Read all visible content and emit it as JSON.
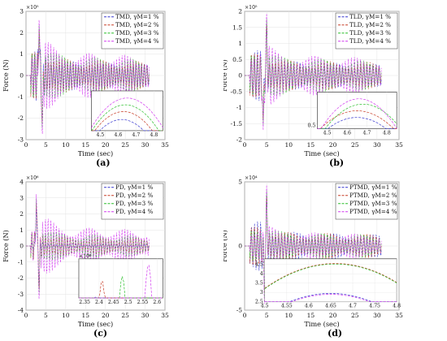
{
  "colors": {
    "series": [
      "#3b3bd0",
      "#c8402a",
      "#2fc02f",
      "#d33cf0"
    ]
  },
  "chart_data": [
    {
      "panel_label": "(a)",
      "type": "line",
      "title": "",
      "xlabel": "Time (sec)",
      "ylabel": "Force (N)",
      "exponent": "×10⁵",
      "xlim": [
        0,
        35
      ],
      "ylim": [
        -3,
        3
      ],
      "xticks": [
        "0",
        "5",
        "10",
        "15",
        "20",
        "25",
        "30",
        "35"
      ],
      "yticks": [
        "-3",
        "-2",
        "-1",
        "0",
        "1",
        "2",
        "3"
      ],
      "grid": true,
      "legend_position": "top-right",
      "series": [
        {
          "name": "TMD, γM=1 %",
          "amplitude": 1.4
        },
        {
          "name": "TMD, γM=2 %",
          "amplitude": 1.6
        },
        {
          "name": "TMD, γM=3 %",
          "amplitude": 1.9
        },
        {
          "name": "TMD, γM=4 %",
          "amplitude": 2.2
        }
      ],
      "peaks": [
        [
          3.3,
          2.7
        ],
        [
          4.1,
          -2.9
        ]
      ],
      "signal_end": 31,
      "inset": {
        "xlim": [
          4.45,
          4.85
        ],
        "xticks": [
          "4.5",
          "4.6",
          "4.7",
          "4.8"
        ],
        "yticks": [],
        "ylim": [
          0.5,
          1.5
        ],
        "curves": [
          {
            "peak_x": 4.62,
            "peak_y": 0.78,
            "width": 0.22
          },
          {
            "peak_x": 4.63,
            "peak_y": 0.98,
            "width": 0.22
          },
          {
            "peak_x": 4.64,
            "peak_y": 1.15,
            "width": 0.22
          },
          {
            "peak_x": 4.65,
            "peak_y": 1.32,
            "width": 0.22
          }
        ]
      }
    },
    {
      "panel_label": "(b)",
      "type": "line",
      "title": "",
      "xlabel": "Time (sec)",
      "ylabel": "Force (N)",
      "exponent": "×10⁵",
      "xlim": [
        0,
        35
      ],
      "ylim": [
        -2,
        2
      ],
      "xticks": [
        "0",
        "5",
        "10",
        "15",
        "20",
        "25",
        "30",
        "35"
      ],
      "yticks": [
        "-2",
        "-1.5",
        "-1",
        "-0.5",
        "0",
        "0.5",
        "1",
        "1.5",
        "2"
      ],
      "grid": true,
      "legend_position": "top-right",
      "series": [
        {
          "name": "TLD, γM=1 %",
          "amplitude": 0.9
        },
        {
          "name": "TLD, γM=2 %",
          "amplitude": 1.0
        },
        {
          "name": "TLD, γM=3 %",
          "amplitude": 1.15
        },
        {
          "name": "TLD, γM=4 %",
          "amplitude": 1.3
        }
      ],
      "peaks": [
        [
          5.0,
          1.95
        ],
        [
          4.2,
          -1.75
        ]
      ],
      "signal_end": 31,
      "inset": {
        "xlim": [
          4.45,
          4.85
        ],
        "xticks": [
          "4.5",
          "4.6",
          "4.7",
          "4.8"
        ],
        "yticks": [
          "0.5"
        ],
        "ylim": [
          0.45,
          1.0
        ],
        "curves": [
          {
            "peak_x": 4.65,
            "peak_y": 0.62,
            "width": 0.25
          },
          {
            "peak_x": 4.65,
            "peak_y": 0.72,
            "width": 0.25
          },
          {
            "peak_x": 4.68,
            "peak_y": 0.82,
            "width": 0.22
          },
          {
            "peak_x": 4.66,
            "peak_y": 0.9,
            "width": 0.2
          }
        ]
      }
    },
    {
      "panel_label": "(c)",
      "type": "line",
      "title": "",
      "xlabel": "Time (sec)",
      "ylabel": "Force (N)",
      "exponent": "×10⁶",
      "xlim": [
        0,
        35
      ],
      "ylim": [
        -4,
        4
      ],
      "xticks": [
        "0",
        "5",
        "10",
        "15",
        "20",
        "25",
        "30",
        "35"
      ],
      "yticks": [
        "-4",
        "-3",
        "-2",
        "-1",
        "0",
        "1",
        "2",
        "3",
        "4"
      ],
      "grid": true,
      "legend_position": "top-right",
      "series": [
        {
          "name": "PD, γM=1 %",
          "amplitude": 0.3
        },
        {
          "name": "PD, γM=2 %",
          "amplitude": 1.2
        },
        {
          "name": "PD, γM=3 %",
          "amplitude": 1.6
        },
        {
          "name": "PD, γM=4 %",
          "amplitude": 2.4
        }
      ],
      "peaks": [
        [
          2.6,
          3.3
        ],
        [
          3.3,
          -3.4
        ]
      ],
      "signal_end": 31,
      "inset": {
        "xlim": [
          2.33,
          2.62
        ],
        "xticks": [
          "2.35",
          "2.4",
          "2.45",
          "2.5",
          "2.55",
          "2.6"
        ],
        "yticks": [],
        "exponent": "×10⁶",
        "ylim": [
          0,
          1
        ],
        "curves": [
          {
            "peak_x": 2.39,
            "peak_y": 0.05,
            "width": 0.012
          },
          {
            "peak_x": 2.41,
            "peak_y": 0.45,
            "width": 0.012
          },
          {
            "peak_x": 2.48,
            "peak_y": 0.55,
            "width": 0.012
          },
          {
            "peak_x": 2.57,
            "peak_y": 0.85,
            "width": 0.012
          }
        ]
      }
    },
    {
      "panel_label": "(d)",
      "type": "line",
      "title": "",
      "xlabel": "Time (sec)",
      "ylabel": "Force (N)",
      "exponent": "×10⁴",
      "xlim": [
        0,
        35
      ],
      "ylim": [
        -5,
        5
      ],
      "xticks": [
        "0",
        "5",
        "10",
        "15",
        "20",
        "25",
        "30",
        "35"
      ],
      "yticks": [
        "-5",
        "0",
        "5"
      ],
      "grid": true,
      "legend_position": "top-right",
      "series": [
        {
          "name": "PTMD, γM=1 %",
          "amplitude": 2.2
        },
        {
          "name": "PTMD, γM=2 %",
          "amplitude": 2.2
        },
        {
          "name": "PTMD, γM=3 %",
          "amplitude": 2.2
        },
        {
          "name": "PTMD, γM=4 %",
          "amplitude": 2.2
        }
      ],
      "peaks": [
        [
          5.0,
          4.8
        ],
        [
          4.5,
          -4.6
        ]
      ],
      "signal_end": 31,
      "inset": {
        "xlim": [
          4.5,
          4.8
        ],
        "xticks": [
          "4.5",
          "4.55",
          "4.6",
          "4.65",
          "4.7",
          "4.75",
          "4.8"
        ],
        "yticks": [
          "2.5",
          "3",
          "3.5",
          "4",
          "4.5"
        ],
        "ylim": [
          2.5,
          4.8
        ],
        "curves": [
          {
            "peak_x": 4.65,
            "peak_y": 2.95,
            "width": 0.2
          },
          {
            "peak_x": 4.66,
            "peak_y": 4.55,
            "width": 0.2
          },
          {
            "peak_x": 4.66,
            "peak_y": 4.52,
            "width": 0.2
          },
          {
            "peak_x": 4.65,
            "peak_y": 2.9,
            "width": 0.2
          }
        ]
      }
    }
  ]
}
